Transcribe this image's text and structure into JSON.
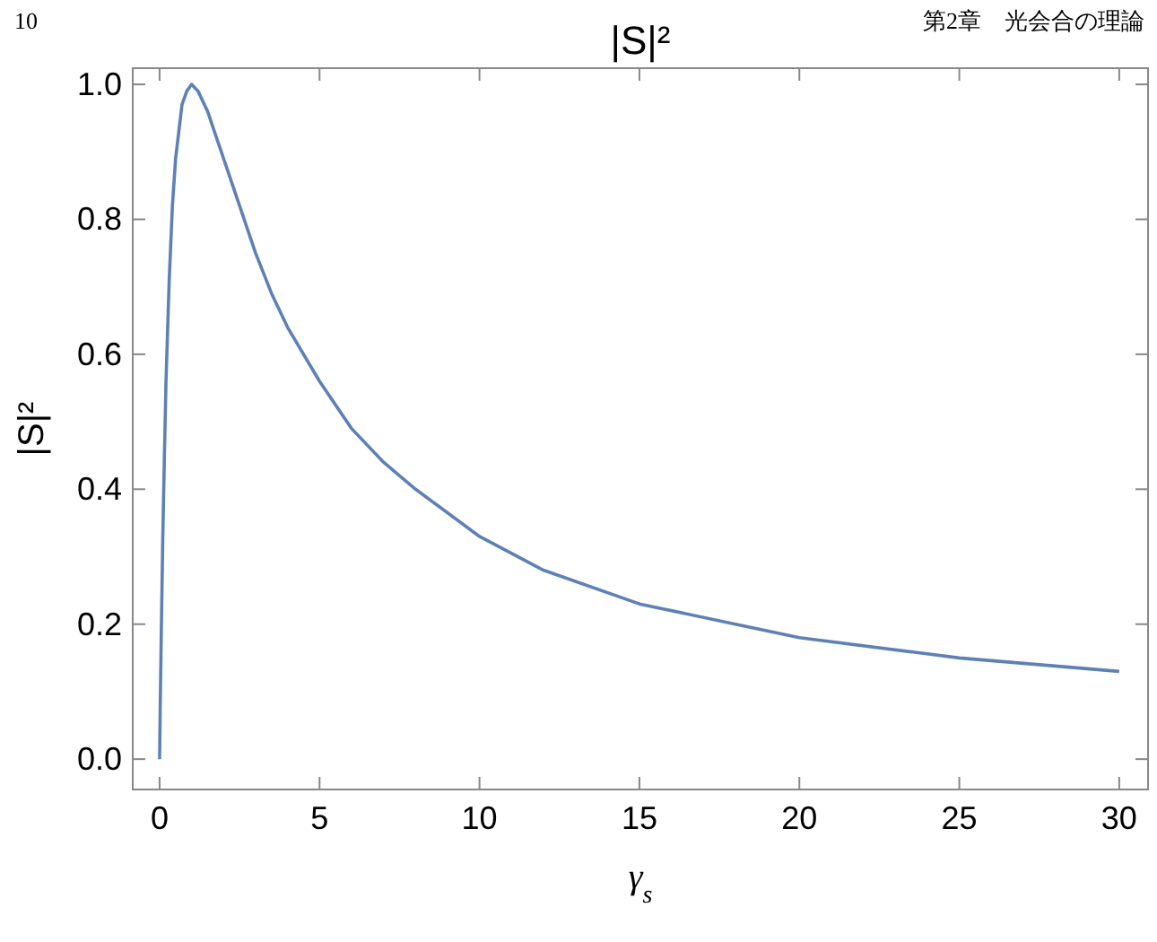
{
  "chart_data": {
    "type": "line",
    "title": "|S|²",
    "xlabel": "γ$_{s}$",
    "ylabel": "|S|²",
    "annotations": [
      "10",
      "第2章　光会合の理論"
    ],
    "x": [
      0,
      0.01,
      0.02,
      0.05,
      0.1,
      0.15,
      0.2,
      0.3,
      0.4,
      0.5,
      0.7,
      0.85,
      1,
      1.2,
      1.5,
      2,
      2.5,
      3,
      3.5,
      4,
      5,
      6,
      7,
      8,
      10,
      12,
      15,
      18,
      20,
      25,
      30
    ],
    "series": [
      {
        "color": "#5e81b5",
        "values": [
          0,
          0.04,
          0.08,
          0.18,
          0.33,
          0.45,
          0.56,
          0.71,
          0.82,
          0.89,
          0.97,
          0.99,
          1,
          0.99,
          0.96,
          0.89,
          0.82,
          0.75,
          0.69,
          0.64,
          0.56,
          0.49,
          0.44,
          0.4,
          0.33,
          0.28,
          0.23,
          0.2,
          0.18,
          0.15,
          0.13
        ]
      }
    ],
    "xlim": [
      -0.84,
      30.9
    ],
    "ylim": [
      -0.045,
      1.024
    ],
    "xticks": [
      0,
      5,
      10,
      15,
      20,
      25,
      30
    ],
    "yticks": [
      {
        "value": 0,
        "label": "0.0"
      },
      {
        "value": 0.2,
        "label": "0.2"
      },
      {
        "value": 0.4,
        "label": "0.4"
      },
      {
        "value": 0.6,
        "label": "0.6"
      },
      {
        "value": 0.8,
        "label": "0.8"
      },
      {
        "value": 1,
        "label": "1.0"
      }
    ],
    "grid": false,
    "marker": "none",
    "line_style": "solid"
  }
}
